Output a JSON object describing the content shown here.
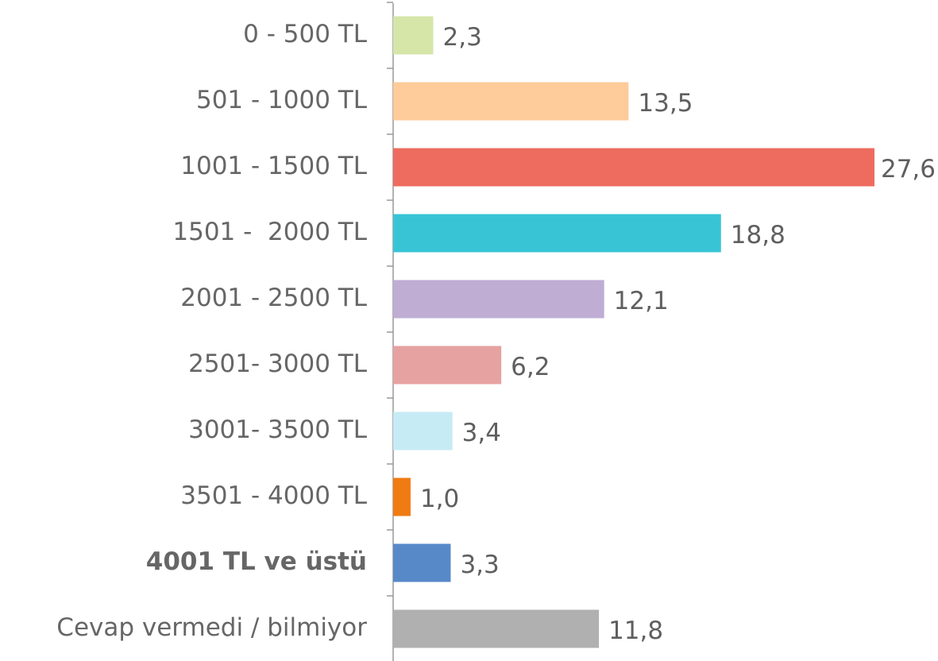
{
  "chart_data": {
    "type": "bar",
    "orientation": "horizontal",
    "categories": [
      "0 - 500 TL",
      "501 - 1000 TL",
      "1001 - 1500 TL",
      "1501 -  2000 TL",
      "2001 - 2500 TL",
      "2501- 3000 TL",
      "3001- 3500 TL",
      "3501 - 4000 TL",
      "4001 TL ve üstü",
      "Cevap vermedi / bilmiyor"
    ],
    "values": [
      2.3,
      13.5,
      27.6,
      18.8,
      12.1,
      6.2,
      3.4,
      1.0,
      3.3,
      11.8
    ],
    "value_labels": [
      "2,3",
      "13,5",
      "27,6",
      "18,8",
      "12,1",
      "6,2",
      "3,4",
      "1,0",
      "3,3",
      "11,8"
    ],
    "colors": [
      "#d5e6a8",
      "#fecb9a",
      "#ee6b5f",
      "#39c4d6",
      "#bfadd4",
      "#e6a2a0",
      "#c6ebf5",
      "#f07b12",
      "#5789c9",
      "#b0b0b0"
    ]
  }
}
